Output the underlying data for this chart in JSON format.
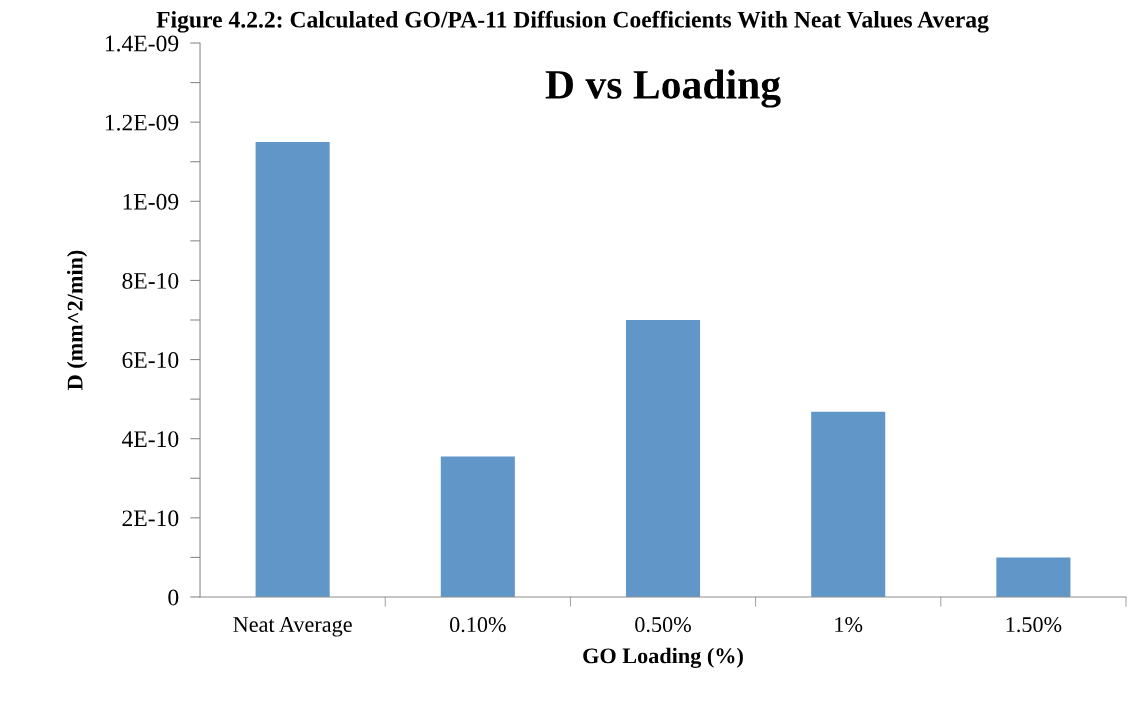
{
  "chart_data": {
    "type": "bar",
    "title": "D vs Loading",
    "annotations": [
      "Figure 4.2.2: Calculated GO/PA-11 Diffusion Coefficients With Neat Values Averag"
    ],
    "xlabel": "GO Loading (%)",
    "ylabel": "D (mm^2/min)",
    "categories": [
      "Neat Average",
      "0.10%",
      "0.50%",
      "1%",
      "1.50%"
    ],
    "values": [
      1.15e-09,
      3.55e-10,
      7e-10,
      4.68e-10,
      1e-10
    ],
    "color": "#6196c9",
    "ylim": [
      0,
      1.4e-09
    ],
    "yticks": [
      {
        "value": 0,
        "label": "0"
      },
      {
        "value": 1e-10,
        "label": null
      },
      {
        "value": 2e-10,
        "label": "2E-10"
      },
      {
        "value": 3e-10,
        "label": null
      },
      {
        "value": 4e-10,
        "label": "4E-10"
      },
      {
        "value": 5e-10,
        "label": null
      },
      {
        "value": 6e-10,
        "label": "6E-10"
      },
      {
        "value": 7e-10,
        "label": null
      },
      {
        "value": 8e-10,
        "label": "8E-10"
      },
      {
        "value": 9e-10,
        "label": null
      },
      {
        "value": 1e-09,
        "label": "1E-09"
      },
      {
        "value": 1.1e-09,
        "label": null
      },
      {
        "value": 1.2e-09,
        "label": "1.2E-09"
      },
      {
        "value": 1.3e-09,
        "label": null
      },
      {
        "value": 1.4e-09,
        "label": "1.4E-09"
      }
    ],
    "grid": false,
    "legend": false
  }
}
